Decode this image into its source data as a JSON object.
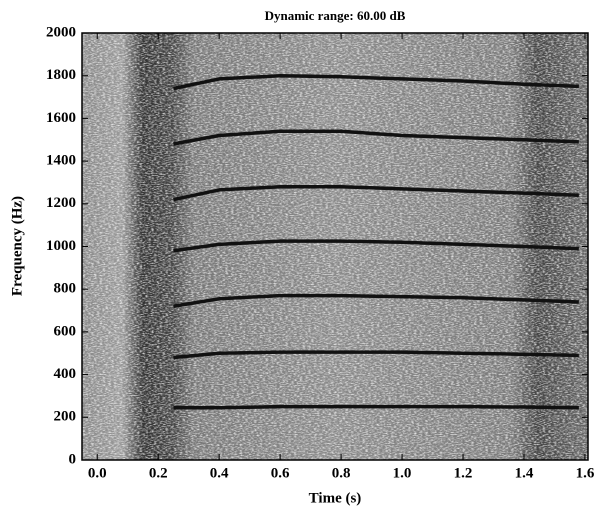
{
  "chart_data": {
    "type": "spectrogram",
    "title": "Dynamic range: 60.00 dB",
    "xlabel": "Time (s)",
    "ylabel": "Frequency (Hz)",
    "xlim": [
      -0.05,
      1.61
    ],
    "ylim": [
      0,
      2000
    ],
    "xticks": [
      {
        "value": 0,
        "label": "0.0"
      },
      0.2,
      0.4,
      0.6,
      0.8,
      {
        "value": 1,
        "label": "1.0"
      },
      1.2,
      1.4,
      1.6
    ],
    "yticks": [
      0,
      200,
      400,
      600,
      800,
      1000,
      1200,
      1400,
      1600,
      1800,
      2000
    ],
    "grid": false,
    "x": [
      0.25,
      0.4,
      0.6,
      0.8,
      1.0,
      1.2,
      1.4,
      1.58
    ],
    "series": [
      {
        "color": "#111111",
        "values": [
          245,
          245,
          250,
          250,
          250,
          250,
          248,
          245
        ]
      },
      {
        "color": "#111111",
        "values": [
          480,
          500,
          505,
          505,
          505,
          500,
          495,
          490
        ]
      },
      {
        "color": "#111111",
        "values": [
          720,
          755,
          770,
          770,
          765,
          760,
          750,
          740
        ]
      },
      {
        "color": "#111111",
        "values": [
          980,
          1010,
          1025,
          1025,
          1020,
          1010,
          1000,
          990
        ]
      },
      {
        "color": "#111111",
        "values": [
          1220,
          1265,
          1280,
          1280,
          1270,
          1260,
          1250,
          1240
        ]
      },
      {
        "color": "#111111",
        "values": [
          1480,
          1520,
          1540,
          1540,
          1520,
          1510,
          1500,
          1490
        ]
      },
      {
        "color": "#111111",
        "values": [
          1740,
          1785,
          1800,
          1795,
          1785,
          1775,
          1760,
          1750
        ]
      }
    ]
  }
}
